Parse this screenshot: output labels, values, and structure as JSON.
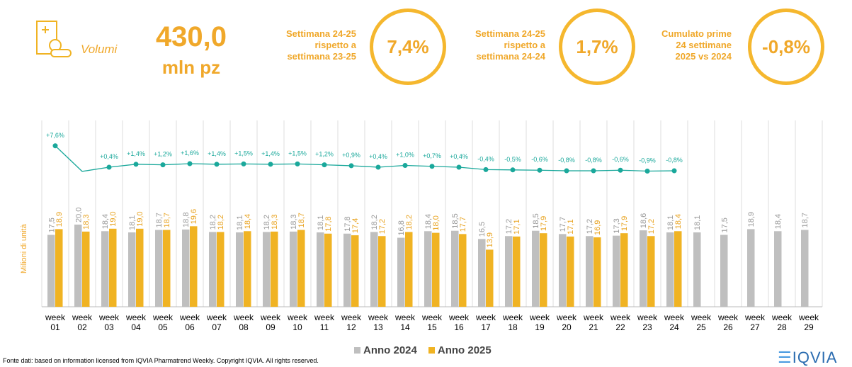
{
  "header": {
    "icon_label": "Volumi",
    "total": "430,0",
    "unit": "mln pz",
    "kpis": [
      {
        "label": [
          "Settimana 24-25",
          "rispetto a",
          "settimana 23-25"
        ],
        "value": "7,4%"
      },
      {
        "label": [
          "Settimana 24-25",
          "rispetto a",
          "settimana 24-24"
        ],
        "value": "1,7%"
      },
      {
        "label": [
          "Cumulato prime",
          "24 settimane",
          "2025 vs 2024"
        ],
        "value": "-0,8%"
      }
    ]
  },
  "chart_data": {
    "type": "bar",
    "y_label": "Milioni di unità",
    "categories": [
      "week 01",
      "week 02",
      "week 03",
      "week 04",
      "week 05",
      "week 06",
      "week 07",
      "week 08",
      "week 09",
      "week 10",
      "week 11",
      "week 12",
      "week 13",
      "week 14",
      "week 15",
      "week 16",
      "week 17",
      "week 18",
      "week 19",
      "week 20",
      "week 21",
      "week 22",
      "week 23",
      "week 24",
      "week 25",
      "week 26",
      "week 27",
      "week 28",
      "week 29"
    ],
    "series": [
      {
        "name": "Anno 2024",
        "color": "#bfbfbf",
        "values": [
          17.5,
          20.0,
          18.4,
          18.1,
          18.7,
          18.8,
          18.2,
          18.1,
          18.2,
          18.3,
          18.1,
          17.8,
          18.2,
          16.8,
          18.4,
          18.5,
          16.5,
          17.2,
          18.5,
          17.7,
          17.2,
          17.3,
          18.6,
          18.1,
          18.1,
          17.5,
          18.9,
          18.4,
          18.7
        ],
        "value_labels": [
          "17,5",
          "20,0",
          "18,4",
          "18,1",
          "18,7",
          "18,8",
          "18,2",
          "18,1",
          "18,2",
          "18,3",
          "18,1",
          "17,8",
          "18,2",
          "16,8",
          "18,4",
          "18,5",
          "16,5",
          "17,2",
          "18,5",
          "17,7",
          "17,2",
          "17,3",
          "18,6",
          "18,1",
          "18,1",
          "17,5",
          "18,9",
          "18,4",
          "18,7"
        ]
      },
      {
        "name": "Anno 2025",
        "color": "#f0b323",
        "values": [
          18.9,
          18.3,
          19.0,
          19.0,
          18.7,
          19.6,
          18.2,
          18.4,
          18.3,
          18.7,
          17.8,
          17.4,
          17.2,
          18.2,
          18.0,
          17.7,
          13.9,
          17.1,
          17.9,
          17.1,
          16.9,
          17.9,
          17.2,
          18.4,
          null,
          null,
          null,
          null,
          null
        ],
        "value_labels": [
          "18,9",
          "18,3",
          "19,0",
          "19,0",
          "18,7",
          "19,6",
          "18,2",
          "18,4",
          "18,3",
          "18,7",
          "17,8",
          "17,4",
          "17,2",
          "18,2",
          "18,0",
          "17,7",
          "13,9",
          "17,1",
          "17,9",
          "17,1",
          "16,9",
          "17,9",
          "17,2",
          "18,4",
          null,
          null,
          null,
          null,
          null
        ]
      }
    ],
    "line": {
      "type": "line",
      "color": "#1aa89b",
      "values": [
        7.6,
        -1.0,
        0.4,
        1.4,
        1.2,
        1.6,
        1.4,
        1.5,
        1.4,
        1.5,
        1.2,
        0.9,
        0.4,
        1.0,
        0.7,
        0.4,
        -0.4,
        -0.5,
        -0.6,
        -0.8,
        -0.8,
        -0.6,
        -0.9,
        -0.8,
        null,
        null,
        null,
        null,
        null
      ],
      "value_labels": [
        "+7,6%",
        null,
        "+0,4%",
        "+1,4%",
        "+1,2%",
        "+1,6%",
        "+1,4%",
        "+1,5%",
        "+1,4%",
        "+1,5%",
        "+1,2%",
        "+0,9%",
        "+0,4%",
        "+1,0%",
        "+0,7%",
        "+0,4%",
        "-0,4%",
        "-0,5%",
        "-0,6%",
        "-0,8%",
        "-0,8%",
        "-0,6%",
        "-0,9%",
        "-0,8%",
        null,
        null,
        null,
        null,
        null
      ]
    }
  },
  "footer": "Fonte dati: based on information licensed from IQVIA Pharmatrend Weekly. Copyright IQVIA. All rights reserved.",
  "logo": "IQVIA"
}
